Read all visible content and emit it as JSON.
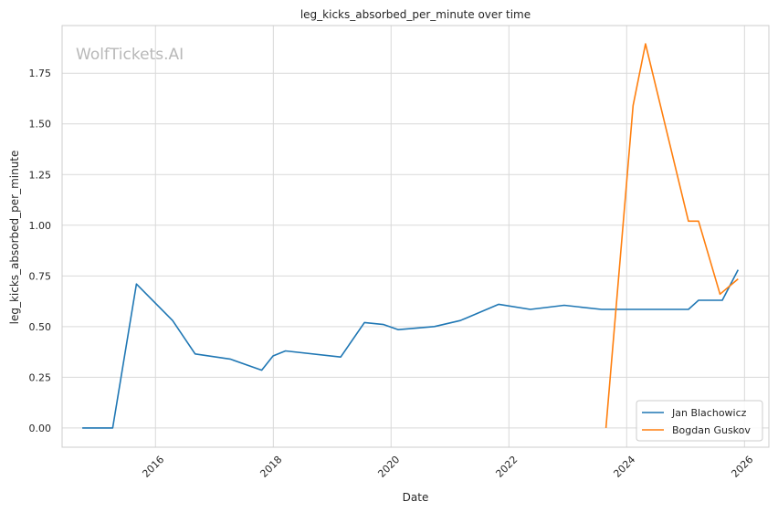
{
  "chart_data": {
    "type": "line",
    "title": "leg_kicks_absorbed_per_minute over time",
    "xlabel": "Date",
    "ylabel": "leg_kicks_absorbed_per_minute",
    "watermark": "WolfTickets.AI",
    "x_ticks": [
      "2016",
      "2018",
      "2020",
      "2022",
      "2024",
      "2026"
    ],
    "y_ticks": [
      "0.00",
      "0.25",
      "0.50",
      "0.75",
      "1.00",
      "1.25",
      "1.50",
      "1.75"
    ],
    "xlim": [
      "2014-06-01",
      "2026-06-01"
    ],
    "ylim": [
      -0.095,
      1.985
    ],
    "grid": true,
    "legend_position": "bottom-right",
    "series": [
      {
        "name": "Jan Blachowicz",
        "color": "#1f77b4",
        "points": [
          [
            "2014-10-04",
            0.0
          ],
          [
            "2015-04-11",
            0.0
          ],
          [
            "2015-09-05",
            0.71
          ],
          [
            "2016-04-16",
            0.53
          ],
          [
            "2016-09-03",
            0.365
          ],
          [
            "2017-04-08",
            0.34
          ],
          [
            "2017-10-21",
            0.285
          ],
          [
            "2017-12-30",
            0.355
          ],
          [
            "2018-03-17",
            0.38
          ],
          [
            "2019-02-23",
            0.35
          ],
          [
            "2019-07-20",
            0.52
          ],
          [
            "2019-11-16",
            0.51
          ],
          [
            "2020-02-15",
            0.485
          ],
          [
            "2020-09-26",
            0.5
          ],
          [
            "2021-03-06",
            0.53
          ],
          [
            "2021-10-30",
            0.61
          ],
          [
            "2022-05-14",
            0.585
          ],
          [
            "2022-12-10",
            0.605
          ],
          [
            "2023-07-29",
            0.585
          ],
          [
            "2024-01-20",
            0.585
          ],
          [
            "2025-01-18",
            0.585
          ],
          [
            "2025-03-22",
            0.63
          ],
          [
            "2025-08-16",
            0.63
          ],
          [
            "2025-11-22",
            0.78
          ]
        ]
      },
      {
        "name": "Bogdan Guskov",
        "color": "#ff7f0e",
        "points": [
          [
            "2023-08-26",
            0.0
          ],
          [
            "2024-02-10",
            1.59
          ],
          [
            "2024-04-27",
            1.895
          ],
          [
            "2025-01-18",
            1.02
          ],
          [
            "2025-03-22",
            1.02
          ],
          [
            "2025-08-02",
            0.66
          ],
          [
            "2025-11-22",
            0.735
          ]
        ]
      }
    ]
  }
}
